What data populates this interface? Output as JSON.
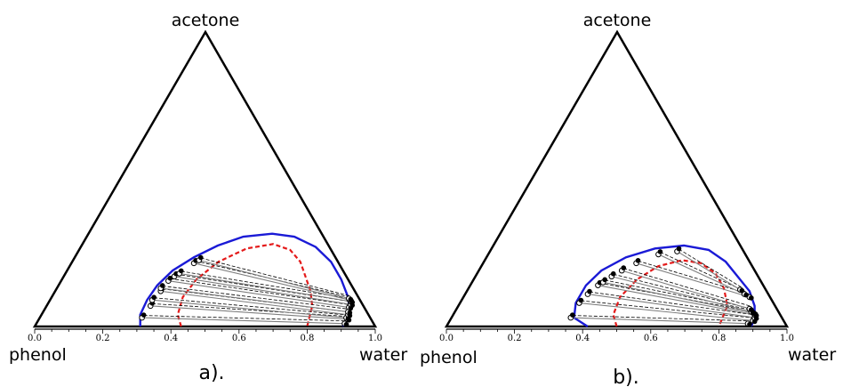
{
  "colors": {
    "binodal": "#1a1ad6",
    "plait_curve": "#e41a1a",
    "tie_line": "#7f7f7f",
    "model_tie_line": "#000000"
  },
  "panels": [
    {
      "caption": "a).",
      "vertex_top": "acetone",
      "vertex_left": "phenol",
      "vertex_right": "water",
      "tick_labels": [
        "0.0",
        "0.2",
        "0.4",
        "0.6",
        "0.8",
        "1.0"
      ]
    },
    {
      "caption": "b).",
      "vertex_top": "acetone",
      "vertex_left": "phenol",
      "vertex_right": "water",
      "tick_labels": [
        "0.0",
        "0.2",
        "0.4",
        "0.6",
        "0.8",
        "1.0"
      ]
    }
  ],
  "chart_data": [
    {
      "type": "ternary",
      "axis": "water fraction",
      "ticks": [
        0.0,
        0.2,
        0.4,
        0.6,
        0.8,
        1.0
      ],
      "binodal": [
        [
          0.31,
          0.0
        ],
        [
          0.29,
          0.04
        ],
        [
          0.285,
          0.09
        ],
        [
          0.29,
          0.14
        ],
        [
          0.31,
          0.19
        ],
        [
          0.35,
          0.235
        ],
        [
          0.4,
          0.275
        ],
        [
          0.46,
          0.305
        ],
        [
          0.54,
          0.315
        ],
        [
          0.61,
          0.305
        ],
        [
          0.69,
          0.27
        ],
        [
          0.76,
          0.22
        ],
        [
          0.82,
          0.16
        ],
        [
          0.87,
          0.1
        ],
        [
          0.9,
          0.05
        ],
        [
          0.905,
          0.0
        ]
      ],
      "spinodal": [
        [
          0.43,
          0.0
        ],
        [
          0.4,
          0.04
        ],
        [
          0.385,
          0.1
        ],
        [
          0.395,
          0.16
        ],
        [
          0.43,
          0.22
        ],
        [
          0.49,
          0.265
        ],
        [
          0.56,
          0.28
        ],
        [
          0.62,
          0.26
        ],
        [
          0.67,
          0.22
        ],
        [
          0.71,
          0.17
        ],
        [
          0.75,
          0.12
        ],
        [
          0.78,
          0.07
        ],
        [
          0.8,
          0.0
        ]
      ],
      "tie_lines": [
        [
          [
            0.3,
            0.03
          ],
          [
            0.905,
            0.01
          ]
        ],
        [
          [
            0.305,
            0.07
          ],
          [
            0.905,
            0.025
          ]
        ],
        [
          [
            0.3,
            0.09
          ],
          [
            0.9,
            0.03
          ]
        ],
        [
          [
            0.31,
            0.12
          ],
          [
            0.9,
            0.04
          ]
        ],
        [
          [
            0.305,
            0.13
          ],
          [
            0.895,
            0.05
          ]
        ],
        [
          [
            0.315,
            0.155
          ],
          [
            0.89,
            0.065
          ]
        ],
        [
          [
            0.325,
            0.17
          ],
          [
            0.89,
            0.075
          ]
        ],
        [
          [
            0.335,
            0.18
          ],
          [
            0.885,
            0.085
          ]
        ],
        [
          [
            0.36,
            0.215
          ],
          [
            0.88,
            0.09
          ]
        ],
        [
          [
            0.37,
            0.225
          ],
          [
            0.875,
            0.095
          ]
        ]
      ]
    },
    {
      "type": "ternary",
      "axis": "water fraction",
      "ticks": [
        0.0,
        0.2,
        0.4,
        0.6,
        0.8,
        1.0
      ],
      "binodal": [
        [
          0.415,
          0.0
        ],
        [
          0.36,
          0.03
        ],
        [
          0.34,
          0.08
        ],
        [
          0.34,
          0.14
        ],
        [
          0.36,
          0.19
        ],
        [
          0.41,
          0.235
        ],
        [
          0.48,
          0.265
        ],
        [
          0.56,
          0.275
        ],
        [
          0.64,
          0.26
        ],
        [
          0.71,
          0.22
        ],
        [
          0.77,
          0.17
        ],
        [
          0.83,
          0.12
        ],
        [
          0.87,
          0.07
        ],
        [
          0.89,
          0.03
        ],
        [
          0.895,
          0.0
        ]
      ],
      "spinodal": [
        [
          0.5,
          0.0
        ],
        [
          0.47,
          0.04
        ],
        [
          0.46,
          0.1
        ],
        [
          0.48,
          0.16
        ],
        [
          0.52,
          0.205
        ],
        [
          0.58,
          0.225
        ],
        [
          0.64,
          0.215
        ],
        [
          0.7,
          0.18
        ],
        [
          0.75,
          0.13
        ],
        [
          0.79,
          0.07
        ],
        [
          0.8,
          0.0
        ]
      ],
      "tie_lines": [
        [
          [
            0.35,
            0.03
          ],
          [
            0.88,
            0.01
          ]
        ],
        [
          [
            0.35,
            0.08
          ],
          [
            0.89,
            0.02
          ]
        ],
        [
          [
            0.36,
            0.11
          ],
          [
            0.89,
            0.03
          ]
        ],
        [
          [
            0.375,
            0.14
          ],
          [
            0.885,
            0.04
          ]
        ],
        [
          [
            0.385,
            0.15
          ],
          [
            0.88,
            0.045
          ]
        ],
        [
          [
            0.4,
            0.17
          ],
          [
            0.87,
            0.05
          ]
        ],
        [
          [
            0.42,
            0.19
          ],
          [
            0.86,
            0.06
          ]
        ],
        [
          [
            0.45,
            0.215
          ],
          [
            0.84,
            0.1
          ]
        ],
        [
          [
            0.5,
            0.245
          ],
          [
            0.82,
            0.11
          ]
        ],
        [
          [
            0.55,
            0.255
          ],
          [
            0.8,
            0.125
          ]
        ]
      ]
    }
  ]
}
